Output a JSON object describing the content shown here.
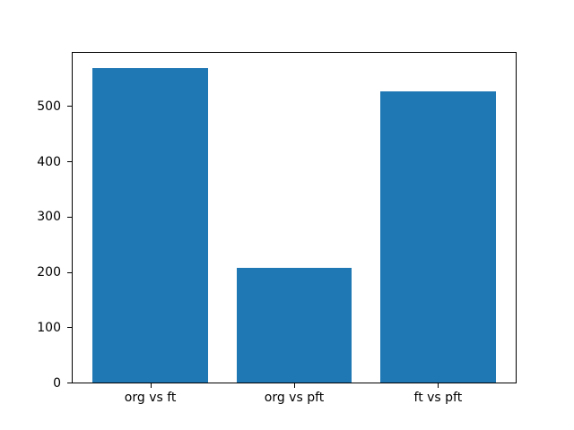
{
  "figure": {
    "background_color": "#ffffff",
    "frame_color": "#000000",
    "text_color": "#000000"
  },
  "chart_data": {
    "type": "bar",
    "title": "",
    "xlabel": "",
    "ylabel": "",
    "categories": [
      "org vs ft",
      "org vs pft",
      "ft vs pft"
    ],
    "values": [
      568,
      207,
      527
    ],
    "bar_color": "#1f77b4",
    "bar_width": 0.8,
    "yticks": [
      0,
      100,
      200,
      300,
      400,
      500
    ],
    "ylim": [
      0,
      596
    ],
    "xlim": [
      -0.54,
      2.54
    ],
    "grid": false,
    "legend_position": "none"
  }
}
